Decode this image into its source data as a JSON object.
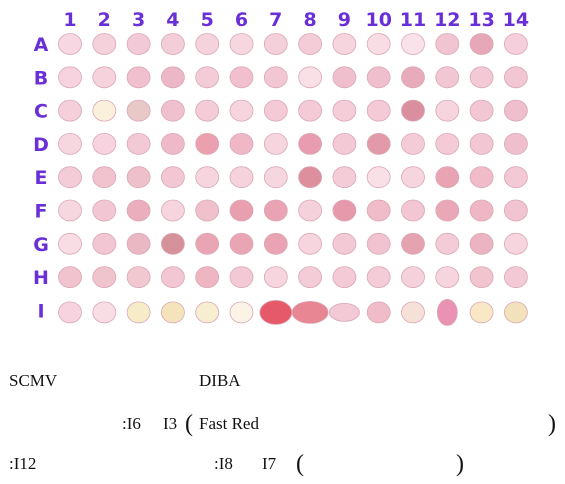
{
  "plate": {
    "column_labels": [
      "1",
      "2",
      "3",
      "4",
      "5",
      "6",
      "7",
      "8",
      "9",
      "10",
      "11",
      "12",
      "13",
      "14"
    ],
    "row_labels": [
      "A",
      "B",
      "C",
      "D",
      "E",
      "F",
      "G",
      "H",
      "I"
    ],
    "label_color": "#6a2fd6",
    "well_colors": [
      [
        "#f7d7e1",
        "#f5d1dc",
        "#f2c9d6",
        "#f3cdd8",
        "#f5d3dd",
        "#f6d7e0",
        "#f4d0db",
        "#f3ccd8",
        "#f6d5df",
        "#f8dde5",
        "#f9e2e9",
        "#f2c4d2",
        "#e6a8b8",
        "#f5d0dc"
      ],
      [
        "#f6d3de",
        "#f5d2dc",
        "#f0c0cf",
        "#ecb7c7",
        "#f4ccd8",
        "#f1bfcd",
        "#f2c6d3",
        "#f9e0e7",
        "#f0bfce",
        "#f0bfce",
        "#e8abbc",
        "#f2c6d3",
        "#f3c9d5",
        "#f2c6d3"
      ],
      [
        "#f5cfd9",
        "#fbf0dc",
        "#e8c9c8",
        "#f0c0cf",
        "#f4ccd8",
        "#f6d5df",
        "#f3cad6",
        "#f3cad6",
        "#f4cdd9",
        "#f3cad6",
        "#d98f9e",
        "#f6d5df",
        "#f2c6d3",
        "#f0bfce"
      ],
      [
        "#f6d7e0",
        "#f6d3de",
        "#f3c9d5",
        "#eeb9c8",
        "#ec9fae",
        "#f0b8c6",
        "#f6d5df",
        "#e99cb0",
        "#f3c9d5",
        "#e29aa9",
        "#f4ccd8",
        "#f3cad6",
        "#f2c6d3",
        "#f0bfce"
      ],
      [
        "#f3ccd8",
        "#f0c3cf",
        "#eec0cb",
        "#f2c6d3",
        "#f6d5df",
        "#f5d2dc",
        "#f6d7e0",
        "#de8f9d",
        "#f4ccd8",
        "#f9e0e7",
        "#f6d5df",
        "#e9a4b4",
        "#f0bcc9",
        "#f3c9d5"
      ],
      [
        "#f6d7e0",
        "#f2c7d3",
        "#ebaebd",
        "#f6d5df",
        "#f1c0cd",
        "#e8a0b0",
        "#e9a3b3",
        "#f5d1dc",
        "#e599aa",
        "#f0bcc9",
        "#f2c6d3",
        "#eaa7b7",
        "#efb7c6",
        "#f2c4d2"
      ],
      [
        "#f8dde5",
        "#f2c6d3",
        "#eab8c2",
        "#d6929b",
        "#eaa5b5",
        "#eaa5b5",
        "#e9a3b3",
        "#f6d5df",
        "#f3c9d5",
        "#f1c3d0",
        "#e5a3b0",
        "#f3ccd8",
        "#ecb3c2",
        "#f6d5df"
      ],
      [
        "#f0c3cf",
        "#efc4cd",
        "#f1c8d0",
        "#f2c6d3",
        "#eeb5c2",
        "#f3c9d5",
        "#f6d5df",
        "#f3ccd8",
        "#f3cad6",
        "#f4ccd8",
        "#f5d1dc",
        "#f6d5df",
        "#f1c4d0",
        "#f3c9d5"
      ],
      [
        "#f6d3de",
        "#f8dde5",
        "#f7ecc8",
        "#f5e3bc",
        "#f7edd0",
        "#faf3e6",
        "#e6596a",
        "#e98693",
        "#f3c9d5",
        "#f0bcc9",
        "#f6e1d8",
        "#ea92b4",
        "#f8e8c6",
        "#f3e1bc"
      ]
    ]
  },
  "captions": {
    "line1": {
      "left": "SCMV",
      "right": "DIBA"
    },
    "line2": {
      "well_a": ":I6",
      "well_b": "I3",
      "open_paren": "(",
      "reagent": "Fast Red",
      "close_paren": ")"
    },
    "line3": {
      "well_a": ":I12",
      "well_b": ":I8",
      "well_c": "I7",
      "open_paren": "(",
      "close_paren": ")"
    }
  }
}
